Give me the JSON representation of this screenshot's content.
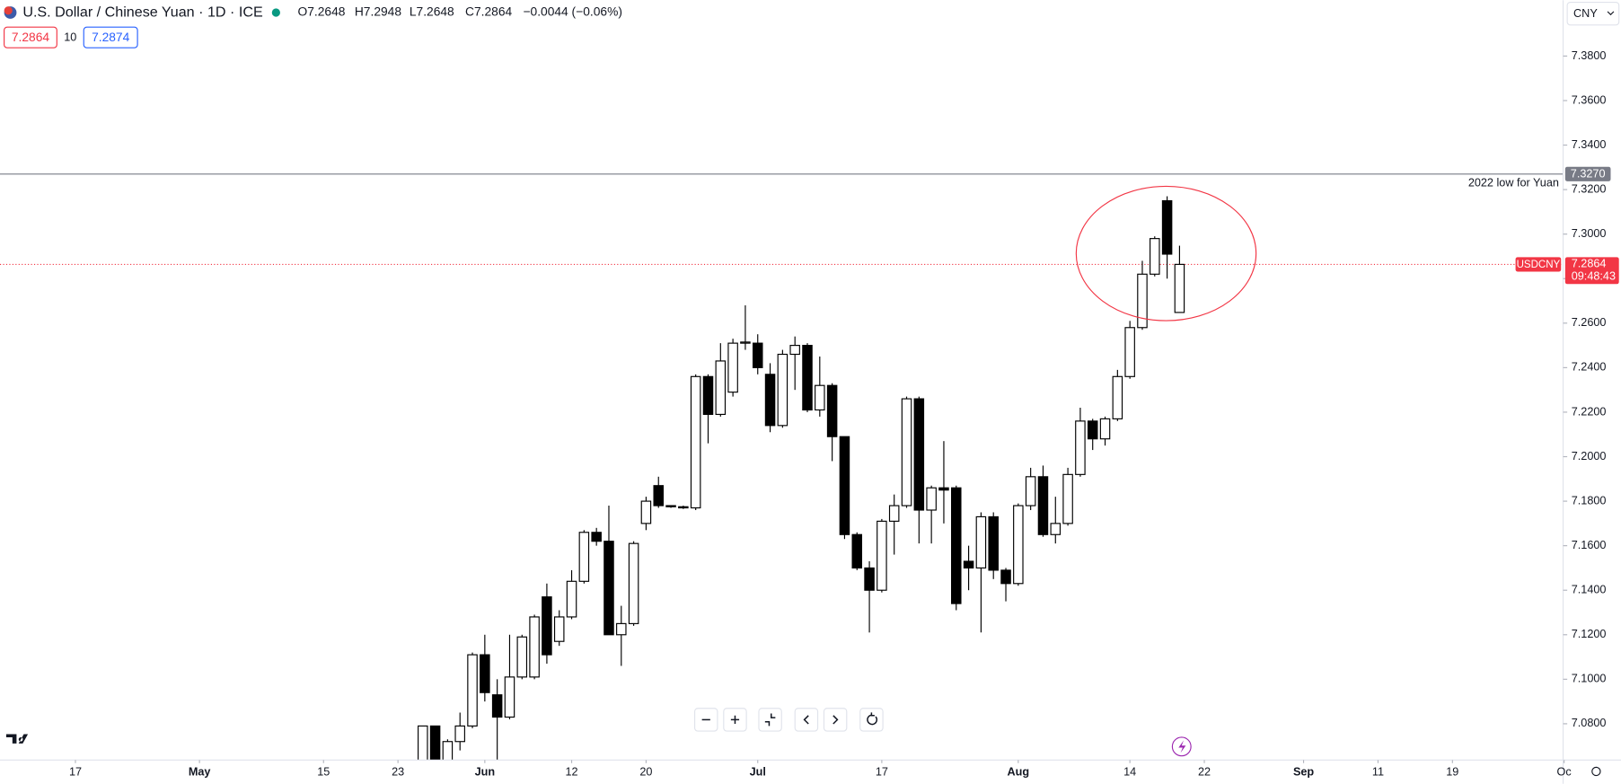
{
  "header": {
    "title": "U.S. Dollar / Chinese Yuan · 1D · ICE",
    "open": "O7.2648",
    "high": "H7.2948",
    "low": "L7.2648",
    "close": "C7.2864",
    "change": "−0.0044 (−0.06%)",
    "bid": "7.2864",
    "spread": "10",
    "ask": "7.2874",
    "currency": "CNY"
  },
  "chart_data": {
    "type": "candlestick",
    "up_color": "#ffffff",
    "down_color": "#000000",
    "border_color": "#000000",
    "x": [
      28,
      29,
      30,
      31,
      32,
      33,
      34,
      35,
      36,
      37,
      38,
      39,
      40,
      41,
      42,
      43,
      44,
      45,
      46,
      47,
      48,
      49,
      50,
      51,
      52,
      53,
      54,
      55,
      56,
      57,
      58,
      59,
      60,
      61,
      62,
      63,
      64,
      65,
      66,
      67,
      68,
      69,
      70,
      71,
      72,
      73,
      74,
      75,
      76,
      77,
      78,
      79,
      80,
      81,
      82,
      83,
      84,
      85,
      86,
      87,
      88,
      89
    ],
    "open": [
      7.06,
      7.079,
      7.062,
      7.072,
      7.079,
      7.111,
      7.093,
      7.083,
      7.101,
      7.101,
      7.137,
      7.117,
      7.128,
      7.144,
      7.166,
      7.162,
      7.12,
      7.125,
      7.17,
      7.187,
      7.178,
      7.1775,
      7.177,
      7.236,
      7.219,
      7.229,
      7.251,
      7.251,
      7.237,
      7.214,
      7.246,
      7.25,
      7.221,
      7.232,
      7.209,
      7.165,
      7.15,
      7.14,
      7.171,
      7.178,
      7.226,
      7.176,
      7.186,
      7.186,
      7.153,
      7.15,
      7.173,
      7.149,
      7.143,
      7.178,
      7.191,
      7.165,
      7.17,
      7.192,
      7.216,
      7.208,
      7.217,
      7.236,
      7.258,
      7.282,
      7.315,
      7.2648
    ],
    "high": [
      7.079,
      7.079,
      7.073,
      7.085,
      7.112,
      7.12,
      7.1,
      7.12,
      7.12,
      7.129,
      7.143,
      7.131,
      7.149,
      7.167,
      7.168,
      7.178,
      7.133,
      7.162,
      7.182,
      7.191,
      7.178,
      7.178,
      7.237,
      7.237,
      7.251,
      7.253,
      7.268,
      7.255,
      7.242,
      7.248,
      7.254,
      7.251,
      7.245,
      7.233,
      7.209,
      7.166,
      7.153,
      7.172,
      7.183,
      7.227,
      7.227,
      7.187,
      7.207,
      7.187,
      7.16,
      7.175,
      7.175,
      7.15,
      7.179,
      7.195,
      7.196,
      7.182,
      7.195,
      7.222,
      7.217,
      7.218,
      7.239,
      7.261,
      7.288,
      7.299,
      7.317,
      7.2948
    ],
    "low": [
      7.06,
      7.06,
      7.062,
      7.068,
      7.078,
      7.09,
      7.06,
      7.082,
      7.1,
      7.1,
      7.107,
      7.115,
      7.127,
      7.143,
      7.16,
      7.12,
      7.106,
      7.124,
      7.167,
      7.177,
      7.177,
      7.1765,
      7.176,
      7.206,
      7.218,
      7.227,
      7.248,
      7.237,
      7.211,
      7.213,
      7.23,
      7.22,
      7.218,
      7.198,
      7.163,
      7.149,
      7.121,
      7.139,
      7.156,
      7.177,
      7.161,
      7.161,
      7.17,
      7.131,
      7.14,
      7.121,
      7.145,
      7.135,
      7.142,
      7.176,
      7.164,
      7.161,
      7.169,
      7.191,
      7.203,
      7.205,
      7.216,
      7.235,
      7.257,
      7.281,
      7.28,
      7.2648
    ],
    "close": [
      7.079,
      7.062,
      7.072,
      7.079,
      7.111,
      7.094,
      7.083,
      7.101,
      7.119,
      7.128,
      7.111,
      7.128,
      7.144,
      7.166,
      7.162,
      7.12,
      7.125,
      7.161,
      7.18,
      7.178,
      7.1775,
      7.177,
      7.236,
      7.219,
      7.243,
      7.251,
      7.2515,
      7.24,
      7.214,
      7.246,
      7.25,
      7.221,
      7.232,
      7.209,
      7.165,
      7.15,
      7.14,
      7.171,
      7.178,
      7.226,
      7.176,
      7.186,
      7.185,
      7.134,
      7.15,
      7.173,
      7.149,
      7.143,
      7.178,
      7.191,
      7.165,
      7.17,
      7.192,
      7.216,
      7.208,
      7.217,
      7.236,
      7.258,
      7.282,
      7.298,
      7.291,
      7.2864
    ],
    "xlim": [
      -6.08,
      119.92
    ],
    "ylim": [
      7.0637,
      7.4051
    ],
    "xticks": [
      {
        "value": 0,
        "label": "17"
      },
      {
        "value": 10,
        "label": "May"
      },
      {
        "value": 20,
        "label": "15"
      },
      {
        "value": 26,
        "label": "23"
      },
      {
        "value": 33,
        "label": "Jun"
      },
      {
        "value": 40,
        "label": "12"
      },
      {
        "value": 46,
        "label": "20"
      },
      {
        "value": 55,
        "label": "Jul"
      },
      {
        "value": 65,
        "label": "17"
      },
      {
        "value": 76,
        "label": "Aug"
      },
      {
        "value": 85,
        "label": "14"
      },
      {
        "value": 91,
        "label": "22"
      },
      {
        "value": 99,
        "label": "Sep"
      },
      {
        "value": 105,
        "label": "11"
      },
      {
        "value": 111,
        "label": "19"
      },
      {
        "value": 120,
        "label": "Oc"
      }
    ],
    "yticks": [
      {
        "value": 7.08,
        "label": "7.0800"
      },
      {
        "value": 7.1,
        "label": "7.1000"
      },
      {
        "value": 7.12,
        "label": "7.1200"
      },
      {
        "value": 7.14,
        "label": "7.1400"
      },
      {
        "value": 7.16,
        "label": "7.1600"
      },
      {
        "value": 7.18,
        "label": "7.1800"
      },
      {
        "value": 7.2,
        "label": "7.2000"
      },
      {
        "value": 7.22,
        "label": "7.2200"
      },
      {
        "value": 7.24,
        "label": "7.2400"
      },
      {
        "value": 7.26,
        "label": "7.2600"
      },
      {
        "value": 7.28,
        "label": "7.2800"
      },
      {
        "value": 7.3,
        "label": "7.3000"
      },
      {
        "value": 7.32,
        "label": "7.3200"
      },
      {
        "value": 7.34,
        "label": "7.3400"
      },
      {
        "value": 7.36,
        "label": "7.3600"
      },
      {
        "value": 7.38,
        "label": "7.3800"
      }
    ],
    "level": {
      "value": 7.327,
      "label": "7.3270",
      "annotation": "2022 low for Yuan",
      "color": "#787b86"
    },
    "last": {
      "value": 7.2864,
      "label": "7.2864",
      "name": "USDCNY",
      "countdown": "09:48:43",
      "color": "#f23645"
    }
  }
}
